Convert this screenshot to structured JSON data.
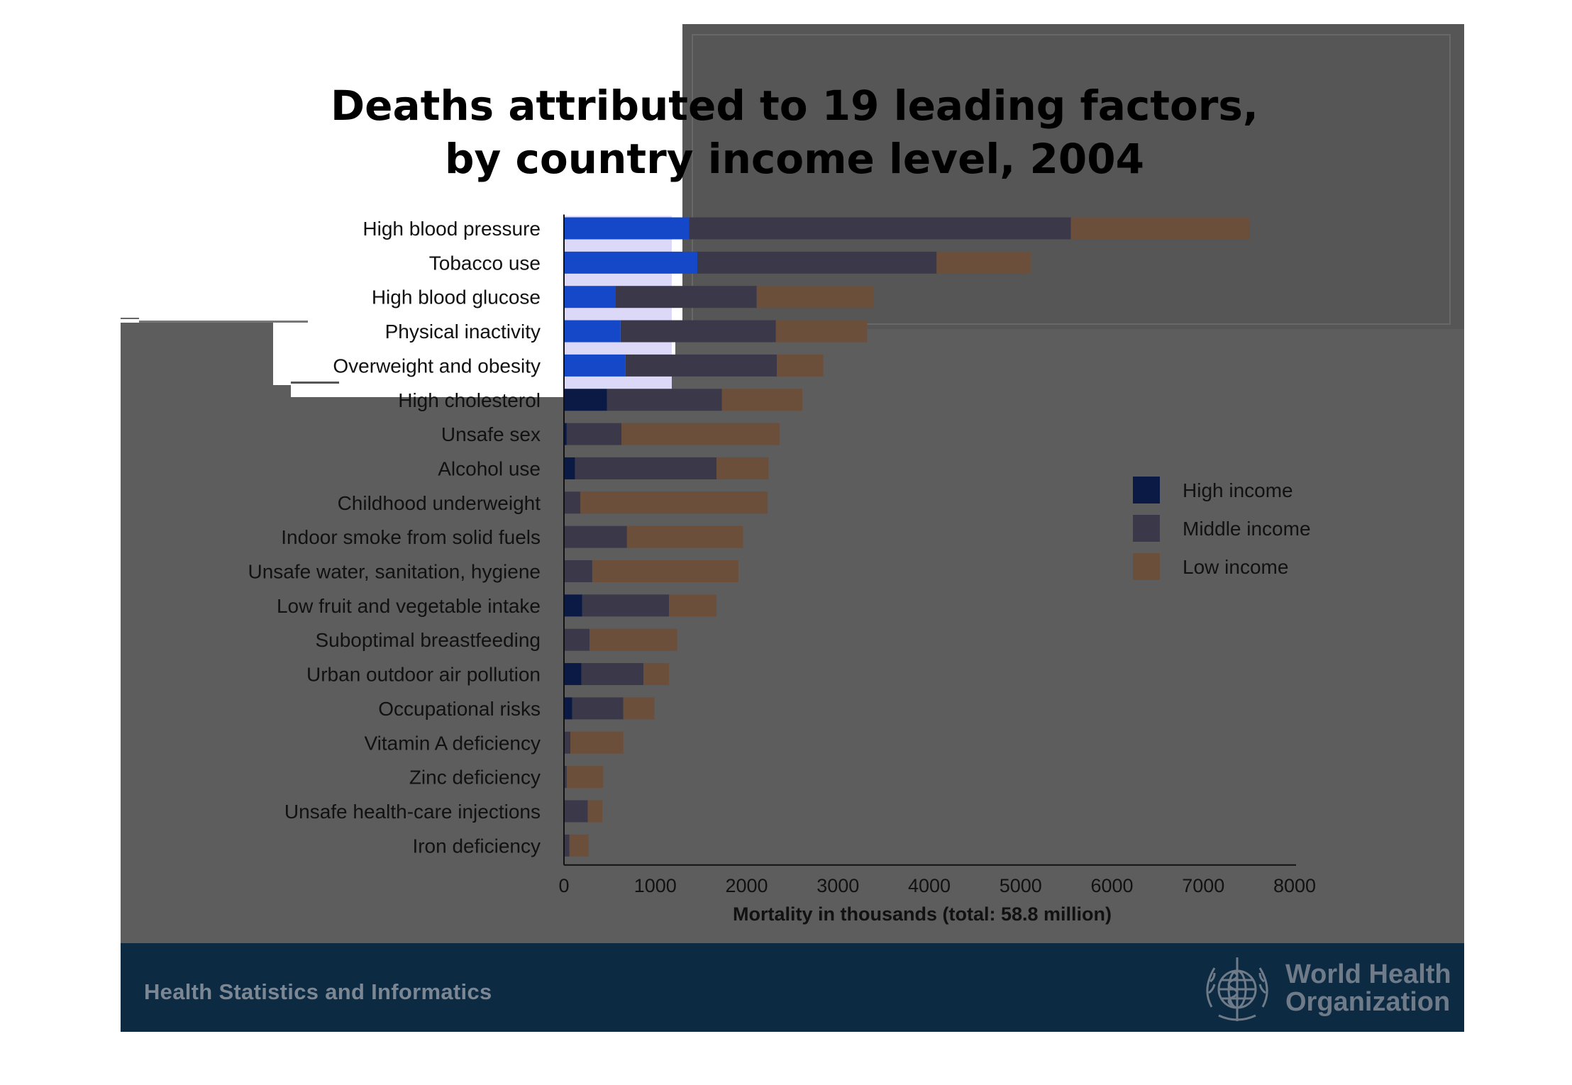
{
  "chart_data": {
    "type": "bar",
    "orientation": "horizontal",
    "stacked": true,
    "title": "Deaths attributed to 19 leading factors, by country income level, 2004",
    "xlabel": "Mortality in thousands (total: 58.8 million)",
    "ylabel": "",
    "xlim": [
      0,
      8000
    ],
    "xticks": [
      "0",
      "1000",
      "2000",
      "3000",
      "4000",
      "5000",
      "6000",
      "7000",
      "8000"
    ],
    "legend_position": "right",
    "categories": [
      "High blood pressure",
      "Tobacco use",
      "High blood glucose",
      "Physical inactivity",
      "Overweight and obesity",
      "High cholesterol",
      "Unsafe sex",
      "Alcohol use",
      "Childhood underweight",
      "Indoor smoke from solid fuels",
      "Unsafe water, sanitation, hygiene",
      "Low fruit and vegetable intake",
      "Suboptimal breastfeeding",
      "Urban outdoor air pollution",
      "Occupational risks",
      "Vitamin A deficiency",
      "Zinc deficiency",
      "Unsafe health-care injections",
      "Iron deficiency"
    ],
    "series": [
      {
        "name": "High income",
        "color": "#0b1a45",
        "values": [
          1370,
          1460,
          560,
          620,
          670,
          470,
          30,
          120,
          0,
          0,
          0,
          200,
          0,
          190,
          90,
          0,
          0,
          0,
          0
        ]
      },
      {
        "name": "Middle income",
        "color": "#3b3949",
        "values": [
          4180,
          2620,
          1550,
          1700,
          1660,
          1260,
          600,
          1550,
          180,
          690,
          310,
          950,
          280,
          680,
          560,
          70,
          30,
          260,
          60
        ]
      },
      {
        "name": "Low income",
        "color": "#6b4f3b",
        "values": [
          1960,
          1030,
          1280,
          1000,
          510,
          880,
          1730,
          570,
          2050,
          1270,
          1600,
          520,
          960,
          280,
          340,
          580,
          400,
          160,
          210
        ]
      }
    ]
  },
  "footer": {
    "left_text": "Health Statistics and Informatics",
    "org_line1": "World Health",
    "org_line2": "Organization"
  },
  "colors": {
    "slide_background": "#5d5d5d",
    "footer_background": "#0c2a42",
    "highlight_bar": "#1448c8",
    "highlight_panel": "#dcd8f8"
  },
  "icons": {
    "emblem": "who-emblem-icon"
  }
}
